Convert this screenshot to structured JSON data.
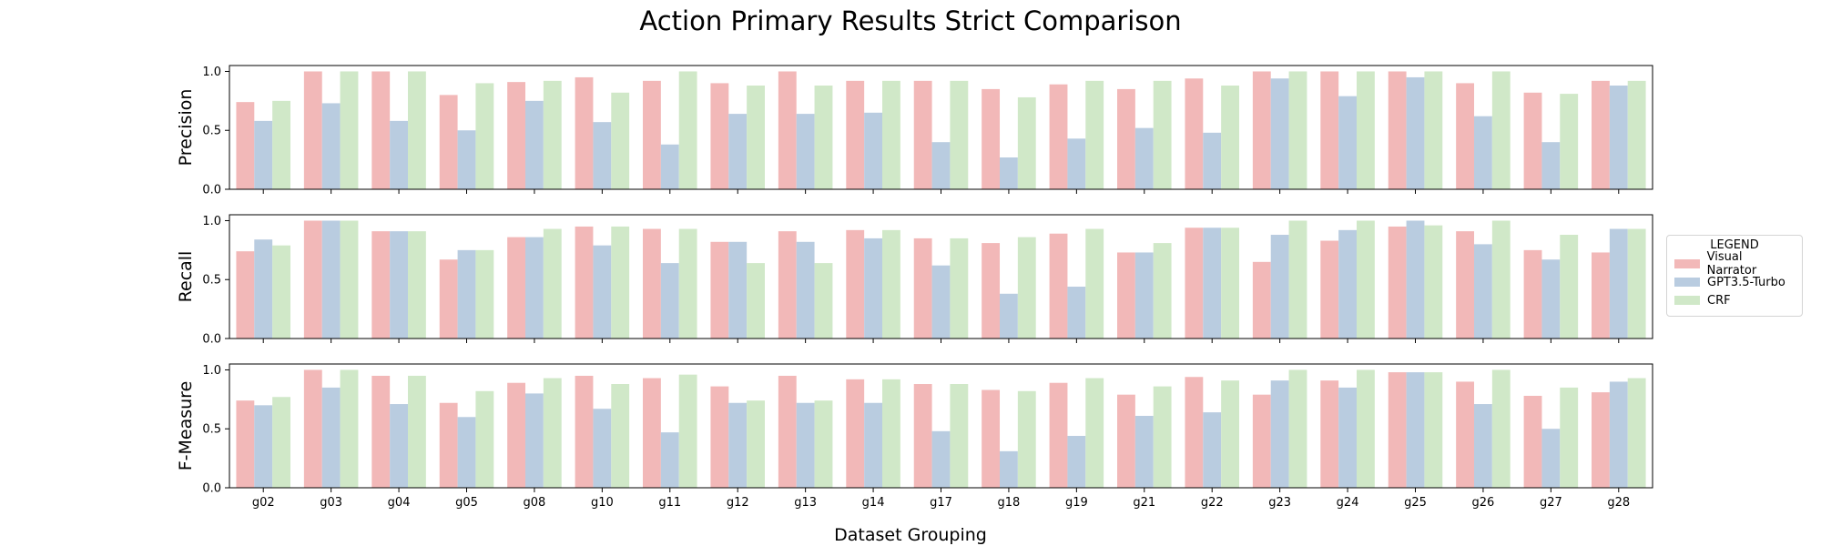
{
  "chart_data": {
    "type": "bar",
    "title": "Action Primary Results Strict Comparison",
    "xlabel": "Dataset Grouping",
    "categories": [
      "g02",
      "g03",
      "g04",
      "g05",
      "g08",
      "g10",
      "g11",
      "g12",
      "g13",
      "g14",
      "g17",
      "g18",
      "g19",
      "g21",
      "g22",
      "g23",
      "g24",
      "g25",
      "g26",
      "g27",
      "g28"
    ],
    "legend": {
      "title": "LEGEND",
      "placement": "right"
    },
    "ylim": [
      0,
      1.05
    ],
    "yticks": [
      "0.0",
      "0.5",
      "1.0"
    ],
    "grid": false,
    "series_names": [
      "Visual Narrator",
      "GPT3.5-Turbo",
      "CRF"
    ],
    "colors": [
      "#f2b8b8",
      "#b9cce0",
      "#d0e8c8"
    ],
    "panels": [
      {
        "ylabel": "Precision",
        "series": [
          {
            "name": "Visual Narrator",
            "values": [
              0.74,
              1.0,
              1.0,
              0.8,
              0.91,
              0.95,
              0.92,
              0.9,
              1.0,
              0.92,
              0.92,
              0.85,
              0.89,
              0.85,
              0.94,
              1.0,
              1.0,
              1.0,
              0.9,
              0.82,
              0.92
            ]
          },
          {
            "name": "GPT3.5-Turbo",
            "values": [
              0.58,
              0.73,
              0.58,
              0.5,
              0.75,
              0.57,
              0.38,
              0.64,
              0.64,
              0.65,
              0.4,
              0.27,
              0.43,
              0.52,
              0.48,
              0.94,
              0.79,
              0.95,
              0.62,
              0.4,
              0.88
            ]
          },
          {
            "name": "CRF",
            "values": [
              0.75,
              1.0,
              1.0,
              0.9,
              0.92,
              0.82,
              1.0,
              0.88,
              0.88,
              0.92,
              0.92,
              0.78,
              0.92,
              0.92,
              0.88,
              1.0,
              1.0,
              1.0,
              1.0,
              0.81,
              0.92
            ]
          }
        ]
      },
      {
        "ylabel": "Recall",
        "series": [
          {
            "name": "Visual Narrator",
            "values": [
              0.74,
              1.0,
              0.91,
              0.67,
              0.86,
              0.95,
              0.93,
              0.82,
              0.91,
              0.92,
              0.85,
              0.81,
              0.89,
              0.73,
              0.94,
              0.65,
              0.83,
              0.95,
              0.91,
              0.75,
              0.73
            ]
          },
          {
            "name": "GPT3.5-Turbo",
            "values": [
              0.84,
              1.0,
              0.91,
              0.75,
              0.86,
              0.79,
              0.64,
              0.82,
              0.82,
              0.85,
              0.62,
              0.38,
              0.44,
              0.73,
              0.94,
              0.88,
              0.92,
              1.0,
              0.8,
              0.67,
              0.93
            ]
          },
          {
            "name": "CRF",
            "values": [
              0.79,
              1.0,
              0.91,
              0.75,
              0.93,
              0.95,
              0.93,
              0.64,
              0.64,
              0.92,
              0.85,
              0.86,
              0.93,
              0.81,
              0.94,
              1.0,
              1.0,
              0.96,
              1.0,
              0.88,
              0.93
            ]
          }
        ]
      },
      {
        "ylabel": "F-Measure",
        "series": [
          {
            "name": "Visual Narrator",
            "values": [
              0.74,
              1.0,
              0.95,
              0.72,
              0.89,
              0.95,
              0.93,
              0.86,
              0.95,
              0.92,
              0.88,
              0.83,
              0.89,
              0.79,
              0.94,
              0.79,
              0.91,
              0.98,
              0.9,
              0.78,
              0.81
            ]
          },
          {
            "name": "GPT3.5-Turbo",
            "values": [
              0.7,
              0.85,
              0.71,
              0.6,
              0.8,
              0.67,
              0.47,
              0.72,
              0.72,
              0.72,
              0.48,
              0.31,
              0.44,
              0.61,
              0.64,
              0.91,
              0.85,
              0.98,
              0.71,
              0.5,
              0.9
            ]
          },
          {
            "name": "CRF",
            "values": [
              0.77,
              1.0,
              0.95,
              0.82,
              0.93,
              0.88,
              0.96,
              0.74,
              0.74,
              0.92,
              0.88,
              0.82,
              0.93,
              0.86,
              0.91,
              1.0,
              1.0,
              0.98,
              1.0,
              0.85,
              0.93
            ]
          }
        ]
      }
    ]
  }
}
